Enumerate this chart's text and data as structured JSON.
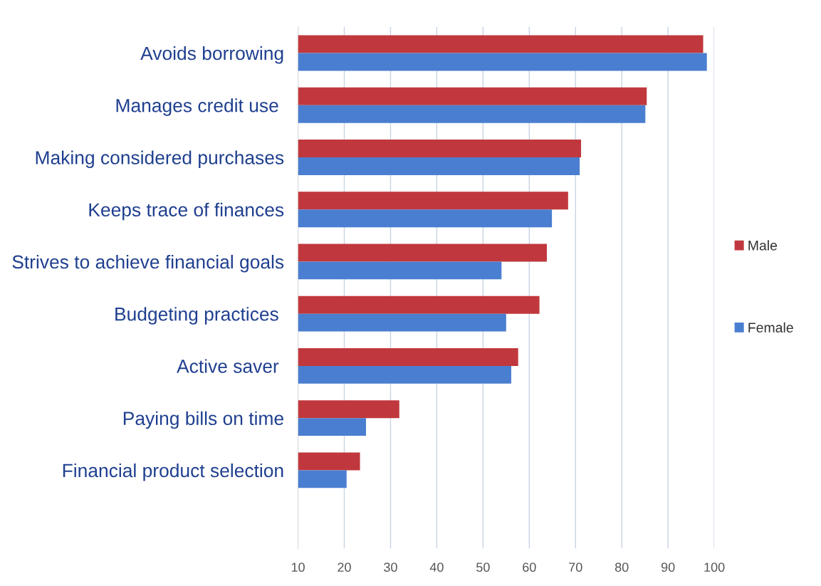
{
  "chart_data": {
    "type": "bar",
    "orientation": "horizontal",
    "categories": [
      "Avoids borrowing",
      "Manages credit use ",
      "Making considered purchases",
      "Keeps trace of finances",
      "Strives to achieve financial goals",
      "Budgeting practices ",
      "Active saver ",
      "Paying bills on time",
      "Financial product selection",
      null
    ],
    "series": [
      {
        "name": "Male",
        "color": "#c0383d",
        "values": [
          97.6,
          85.4,
          71.2,
          68.4,
          63.8,
          62.2,
          57.6,
          31.9,
          23.4,
          null
        ]
      },
      {
        "name": "Female",
        "color": "#4a7ed0",
        "values": [
          98.4,
          85.1,
          70.9,
          64.9,
          54.0,
          55.0,
          56.1,
          24.7,
          20.5,
          null
        ]
      }
    ],
    "xlim": [
      10,
      100
    ],
    "xticks": [
      10,
      20,
      30,
      40,
      50,
      60,
      70,
      80,
      90,
      100
    ],
    "grid": "x",
    "legend": "right"
  }
}
